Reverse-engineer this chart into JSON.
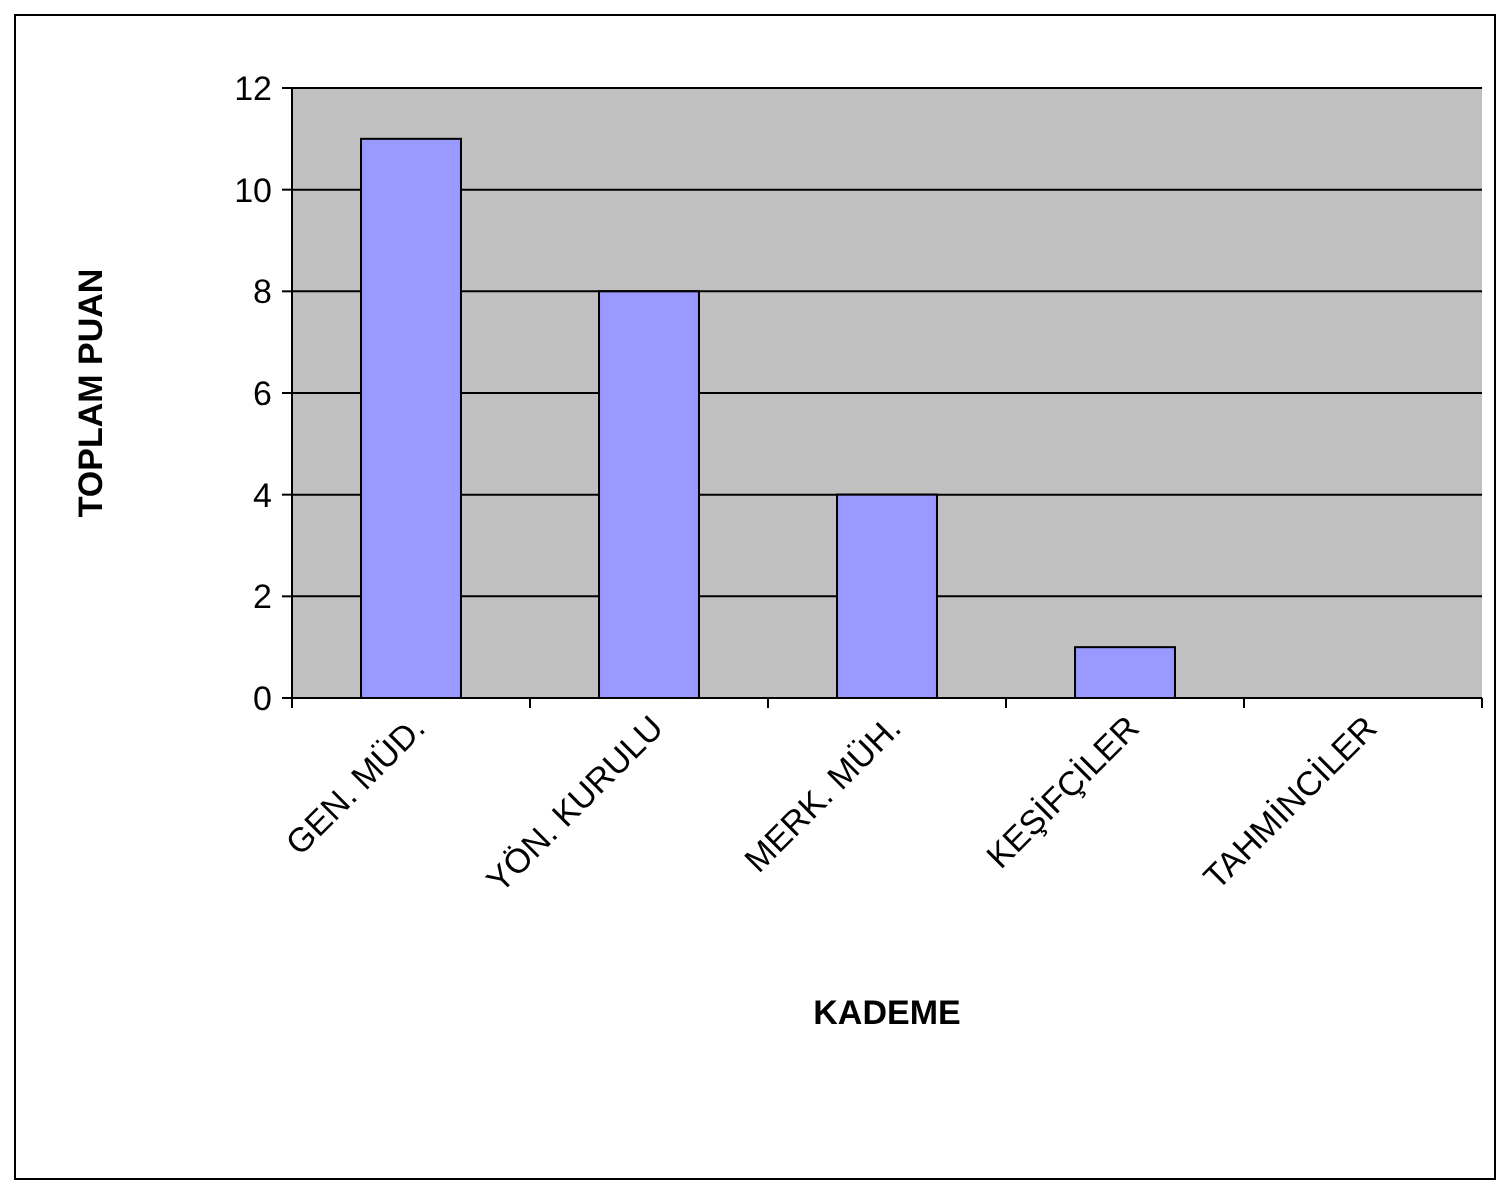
{
  "chart_data": {
    "type": "bar",
    "xlabel": "KADEME",
    "ylabel": "TOPLAM PUAN",
    "categories": [
      "GEN. MÜD.",
      "YÖN. KURULU",
      "MERK. MÜH.",
      "KEŞİFÇİLER",
      "TAHMİNCİLER"
    ],
    "values": [
      11,
      8,
      4,
      1,
      0
    ],
    "color": "#9999ff",
    "ylim": [
      0,
      12
    ],
    "yticks": [
      0,
      2,
      4,
      6,
      8,
      10,
      12
    ],
    "grid": "y"
  }
}
